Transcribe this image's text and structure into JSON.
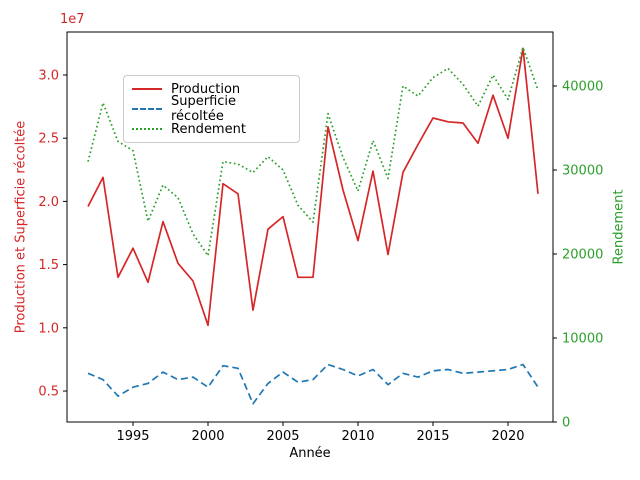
{
  "figure": {
    "background": "#ffffff",
    "spine_color": "#000000",
    "tick_label_color": "#000000"
  },
  "chart_data": {
    "type": "line",
    "title": "",
    "xlabel": "Année",
    "ylabel_left": "Production et Superficie récoltée",
    "ylabel_right": "Rendement",
    "offset_text": "1e7",
    "axis_left_color": "#d62728",
    "axis_right_color": "#2ca02c",
    "grid": false,
    "legend_position": "upper-left",
    "x": [
      1992,
      1993,
      1994,
      1995,
      1996,
      1997,
      1998,
      1999,
      2000,
      2001,
      2002,
      2003,
      2004,
      2005,
      2006,
      2007,
      2008,
      2009,
      2010,
      2011,
      2012,
      2013,
      2014,
      2015,
      2016,
      2017,
      2018,
      2019,
      2020,
      2021,
      2022
    ],
    "xlim": [
      1990.6,
      2023.0
    ],
    "ylim_left": [
      2550000,
      33400000
    ],
    "ylim_right": [
      0,
      46430
    ],
    "xticks": [
      1995,
      2000,
      2005,
      2010,
      2015,
      2020
    ],
    "yticks_left": [
      5000000,
      10000000,
      15000000,
      20000000,
      25000000,
      30000000
    ],
    "yticks_left_labels": [
      "0.5",
      "1.0",
      "1.5",
      "2.0",
      "2.5",
      "3.0"
    ],
    "yticks_right": [
      0,
      10000,
      20000,
      30000,
      40000
    ],
    "series": [
      {
        "name": "Production",
        "axis": "left",
        "color": "#d62728",
        "style": "solid",
        "values": [
          19600000,
          21900000,
          14000000,
          16300000,
          13600000,
          18400000,
          15100000,
          13700000,
          10200000,
          21400000,
          20600000,
          11400000,
          17800000,
          18800000,
          14000000,
          14000000,
          25900000,
          20900000,
          16900000,
          22400000,
          15800000,
          22300000,
          24500000,
          26600000,
          26300000,
          26200000,
          24600000,
          28400000,
          25000000,
          32100000,
          20600000
        ]
      },
      {
        "name": "Superficie récoltée",
        "axis": "left",
        "color": "#1f77b4",
        "style": "dashed",
        "values": [
          6400000,
          5900000,
          4600000,
          5300000,
          5600000,
          6500000,
          5900000,
          6100000,
          5300000,
          7000000,
          6800000,
          4000000,
          5600000,
          6500000,
          5700000,
          5900000,
          7100000,
          6700000,
          6200000,
          6700000,
          5500000,
          6400000,
          6100000,
          6600000,
          6700000,
          6400000,
          6500000,
          6600000,
          6700000,
          7100000,
          5300000
        ]
      },
      {
        "name": "Rendement",
        "axis": "right",
        "color": "#2ca02c",
        "style": "dotted",
        "values": [
          31000,
          38000,
          33400,
          32300,
          23900,
          28200,
          26700,
          22400,
          19800,
          31000,
          30700,
          29700,
          31600,
          30000,
          25800,
          23800,
          36700,
          31500,
          27500,
          33500,
          29000,
          40000,
          38800,
          41000,
          42100,
          40200,
          37600,
          41300,
          38400,
          44600,
          39500
        ]
      }
    ]
  }
}
